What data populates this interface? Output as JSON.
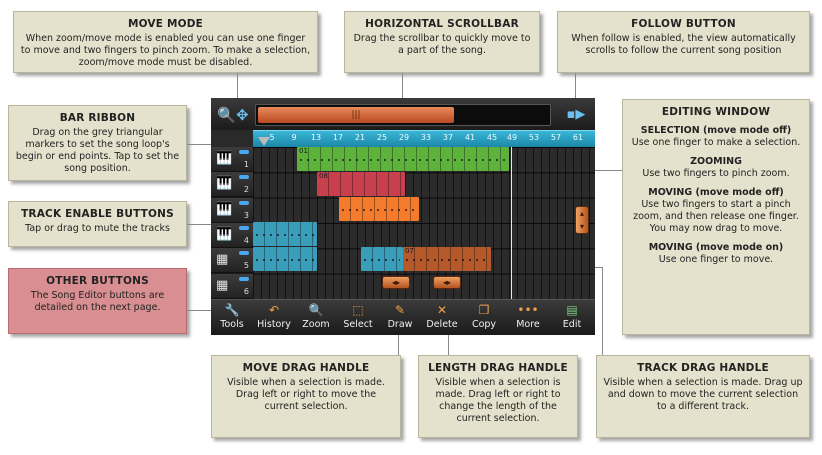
{
  "callouts": {
    "move_mode": {
      "title": "MOVE MODE",
      "body": "When zoom/move mode is enabled you can use one finger to move and two fingers to pinch zoom.  To make a selection, zoom/move mode must be disabled."
    },
    "horizontal_scrollbar": {
      "title": "HORIZONTAL SCROLLBAR",
      "body": "Drag the scrollbar to quickly move to a part of the song."
    },
    "follow_button": {
      "title": "FOLLOW BUTTON",
      "body": "When follow is enabled, the view automatically scrolls to follow the current song position"
    },
    "bar_ribbon": {
      "title": "BAR RIBBON",
      "body": "Drag on the grey triangular markers to set the song loop's begin or end points.  Tap to set the song position."
    },
    "track_enable_buttons": {
      "title": "TRACK ENABLE BUTTONS",
      "body": "Tap or drag to mute the tracks"
    },
    "other_buttons": {
      "title": "OTHER BUTTONS",
      "body": "The Song Editor buttons are detailed on the next page."
    },
    "editing_window": {
      "title": "EDITING WINDOW",
      "selection_head": "SELECTION (move mode off)",
      "selection_body": "Use one finger to make a selection.",
      "zooming_head": "ZOOMING",
      "zooming_body": "Use two fingers to pinch zoom.",
      "moving_off_head": "MOVING (move mode off)",
      "moving_off_body": "Use two fingers to start a pinch zoom, and then release one finger. You may now drag to move.",
      "moving_on_head": "MOVING (move mode on)",
      "moving_on_body": "Use one finger to move."
    },
    "move_drag_handle": {
      "title": "MOVE DRAG HANDLE",
      "body": "Visible when a selection is made. Drag left or right to move the current selection."
    },
    "length_drag_handle": {
      "title": "LENGTH DRAG HANDLE",
      "body": "Visible when a selection is made.  Drag left or right to change the length of the current selection."
    },
    "track_drag_handle": {
      "title": "TRACK DRAG HANDLE",
      "body": "Visible when a selection is made.  Drag up and down to move the current selection to a different track."
    }
  },
  "app": {
    "scroll_thumb_glyph": "|||",
    "scroll_position": 0.66,
    "ruler_ticks": [
      "5",
      "9",
      "13",
      "17",
      "21",
      "25",
      "29",
      "33",
      "37",
      "41",
      "45",
      "49",
      "53",
      "57",
      "61"
    ],
    "tracks": [
      {
        "number": "1",
        "icon": "keyboard-icon"
      },
      {
        "number": "2",
        "icon": "keyboard-icon"
      },
      {
        "number": "3",
        "icon": "keyboard-icon"
      },
      {
        "number": "4",
        "icon": "keyboard-icon"
      },
      {
        "number": "5",
        "icon": "drum-pad-icon"
      },
      {
        "number": "6",
        "icon": "drum-pad-icon"
      }
    ],
    "clips": [
      {
        "name": "01",
        "color": "#5db23c"
      },
      {
        "name": "08",
        "color": "#c8404e"
      },
      {
        "name": "",
        "color": "#f47a2c"
      },
      {
        "name": "",
        "color": "#3a9dba"
      },
      {
        "name": "",
        "color": "#3a9dba"
      },
      {
        "name": "07",
        "color": "#b5582a"
      }
    ],
    "toolbar": [
      {
        "label": "Tools",
        "icon": "wrench-icon",
        "glyph": "🔧"
      },
      {
        "label": "History",
        "icon": "undo-icon",
        "glyph": "↶"
      },
      {
        "label": "Zoom",
        "icon": "magnifier-icon",
        "glyph": "🔍"
      },
      {
        "label": "Select",
        "icon": "selection-icon",
        "glyph": "⬚"
      },
      {
        "label": "Draw",
        "icon": "pencil-icon",
        "glyph": "✎"
      },
      {
        "label": "Delete",
        "icon": "x-icon",
        "glyph": "✕"
      },
      {
        "label": "Copy",
        "icon": "copy-icon",
        "glyph": "❐"
      },
      {
        "label": "More",
        "icon": "ellipsis-icon",
        "glyph": "•••"
      },
      {
        "label": "Edit",
        "icon": "edit-panel-icon",
        "glyph": "▤"
      }
    ]
  }
}
